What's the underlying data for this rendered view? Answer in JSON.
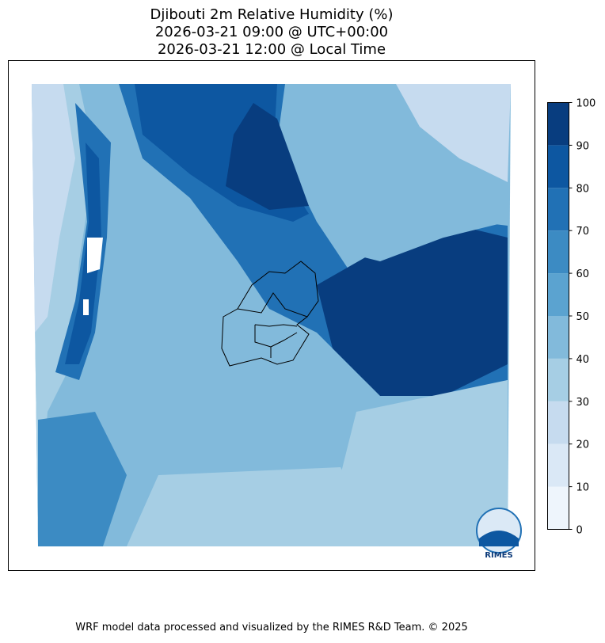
{
  "title": [
    "Djibouti 2m Relative Humidity (%)",
    "2026-03-21 09:00 @ UTC+00:00",
    "2026-03-21 12:00 @ Local Time"
  ],
  "colorbar": {
    "ticks": [
      0,
      10,
      20,
      30,
      40,
      50,
      60,
      70,
      80,
      90,
      100
    ],
    "colors": [
      "#eef5fc",
      "#dae8f6",
      "#c6dbef",
      "#a6cee4",
      "#82badb",
      "#5ba3d0",
      "#3c8bc3",
      "#2171b5",
      "#0d57a1",
      "#083d7f"
    ]
  },
  "logo": "RIMES",
  "footer": "WRF model data processed and visualized by the RIMES R&D Team. © 2025"
}
